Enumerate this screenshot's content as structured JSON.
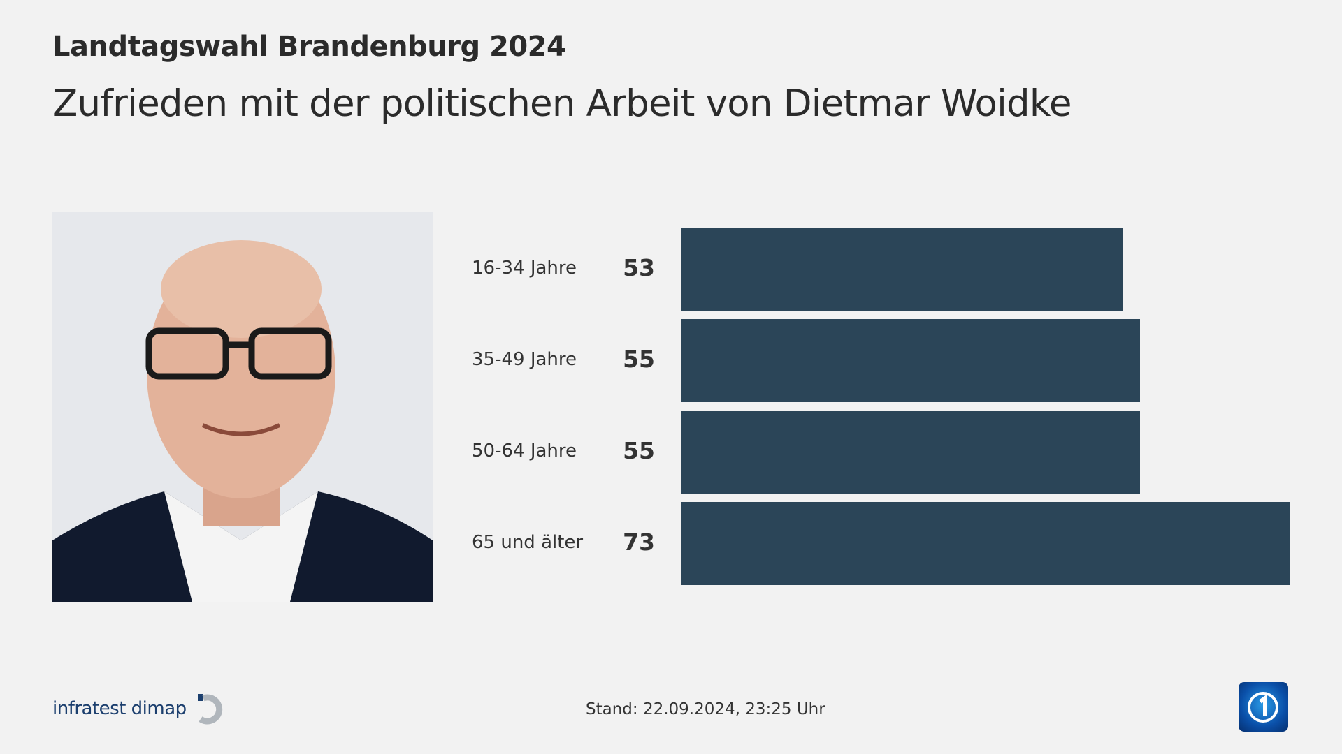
{
  "header": {
    "title": "Landtagswahl Brandenburg 2024",
    "subtitle": "Zufrieden mit der politischen Arbeit von Dietmar Woidke"
  },
  "chart_data": {
    "type": "bar",
    "orientation": "horizontal",
    "categories": [
      "16-34 Jahre",
      "35-49 Jahre",
      "50-64 Jahre",
      "65 und älter"
    ],
    "values": [
      53,
      55,
      55,
      73
    ],
    "labels": [
      "53",
      "55",
      "55",
      "73"
    ],
    "bar_color": "#2b4558",
    "grid": false
  },
  "footer": {
    "source": "infratest dimap",
    "stand": "Stand:  22.09.2024, 23:25 Uhr"
  },
  "colors": {
    "background": "#f2f2f2",
    "bar": "#2b4558",
    "logo_text": "#1c3f6e"
  }
}
